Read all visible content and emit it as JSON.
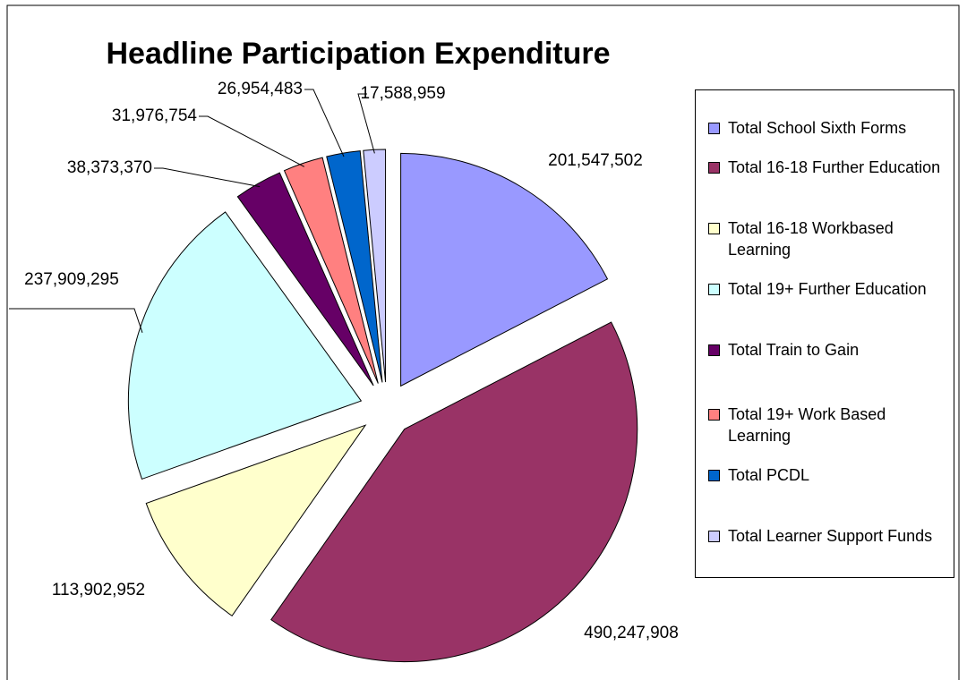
{
  "chart_data": {
    "type": "pie",
    "title": "Headline Participation Expenditure",
    "categories": [
      "Total School Sixth Forms",
      "Total 16-18 Further Education",
      "Total 16-18 Workbased Learning",
      "Total 19+ Further Education",
      "Total Train to Gain",
      "Total 19+ Work Based Learning",
      "Total PCDL",
      "Total Learner Support Funds"
    ],
    "values": [
      201547502,
      490247908,
      113902952,
      237909295,
      38373370,
      31976754,
      26954483,
      17588959
    ],
    "value_labels": [
      "201,547,502",
      "490,247,908",
      "113,902,952",
      "237,909,295",
      "38,373,370",
      "31,976,754",
      "26,954,483",
      "17,588,959"
    ],
    "colors": [
      "#9999ff",
      "#993366",
      "#ffffcc",
      "#ccffff",
      "#660066",
      "#ff8080",
      "#0066cc",
      "#ccccff"
    ],
    "legend": "right"
  }
}
